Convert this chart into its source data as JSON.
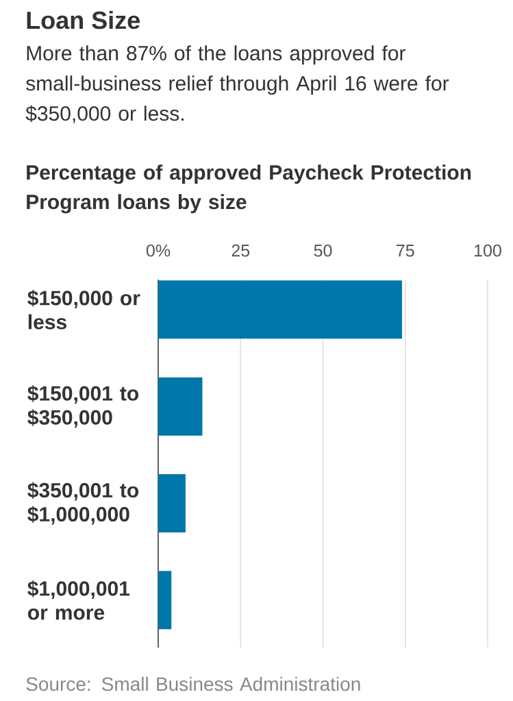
{
  "chart_data": {
    "type": "bar",
    "orientation": "horizontal",
    "title": "Loan Size",
    "subtitle": "More than 87% of the loans approved for small-business relief through April 16 were for $350,000 or less.",
    "annotations": [
      "Percentage of approved Paycheck Protection Program loans by size",
      "Source: Small Business Administration"
    ],
    "categories": [
      "$150,000 or less",
      "$150,001 to $350,000",
      "$350,001 to $1,000,000",
      "$1,000,001 or more"
    ],
    "values": [
      74,
      13.4,
      8.3,
      4
    ],
    "color": "#0077aa",
    "xlim": [
      0,
      100
    ],
    "xticks": [
      {
        "value": 0,
        "label": "0%"
      },
      25,
      50,
      75,
      100
    ],
    "grid": "x"
  }
}
